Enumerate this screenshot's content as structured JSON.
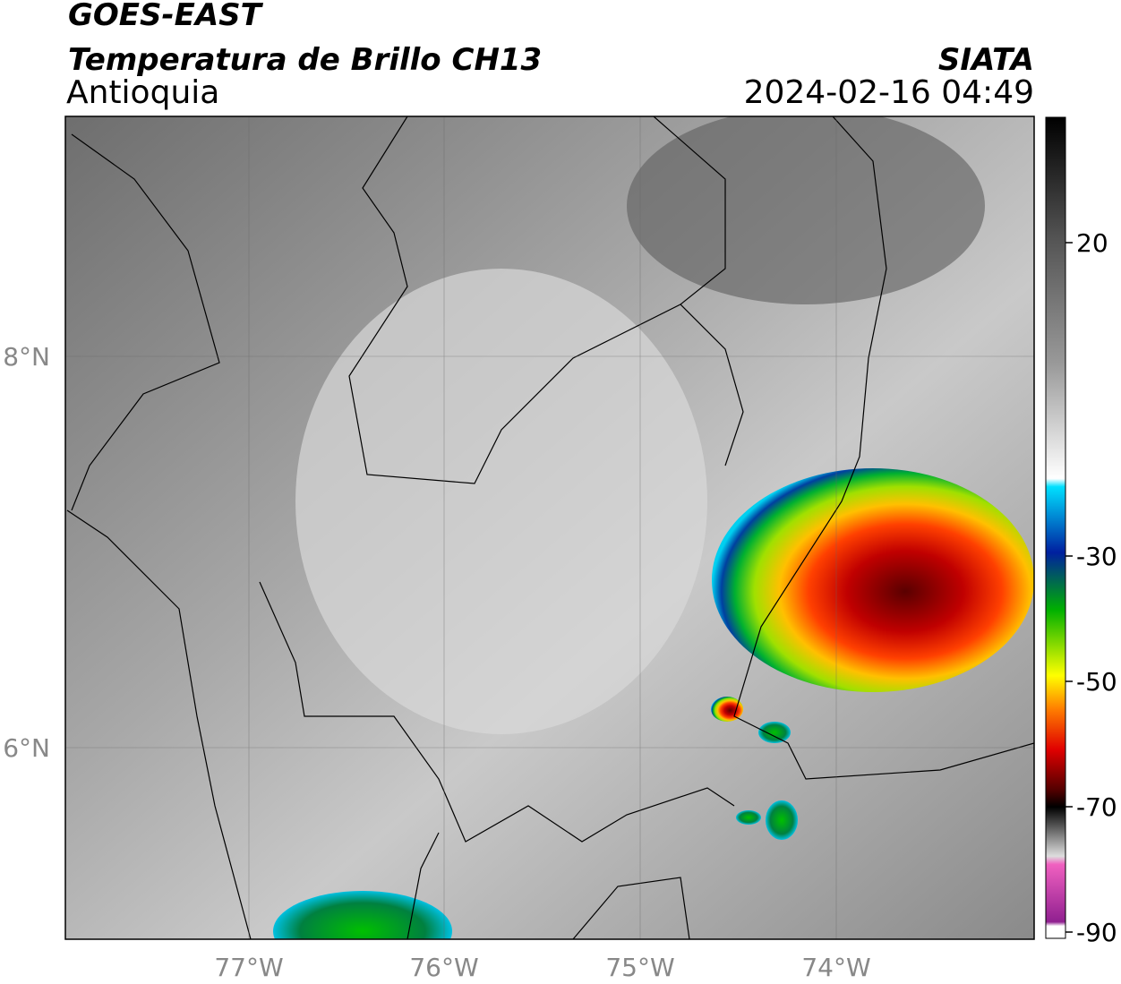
{
  "header": {
    "title": "GOES-EAST",
    "subtitle": "Temperatura de Brillo CH13",
    "region": "Antioquia",
    "source": "SIATA",
    "datetime": "2024-02-16 04:49"
  },
  "map": {
    "lat_labels": [
      "8°N",
      "6°N"
    ],
    "lon_labels": [
      "77°W",
      "76°W",
      "75°W",
      "74°W"
    ]
  },
  "colorbar": {
    "lim": [
      -91,
      40
    ],
    "ticks": [
      20,
      -30,
      -50,
      -70,
      -90
    ]
  }
}
